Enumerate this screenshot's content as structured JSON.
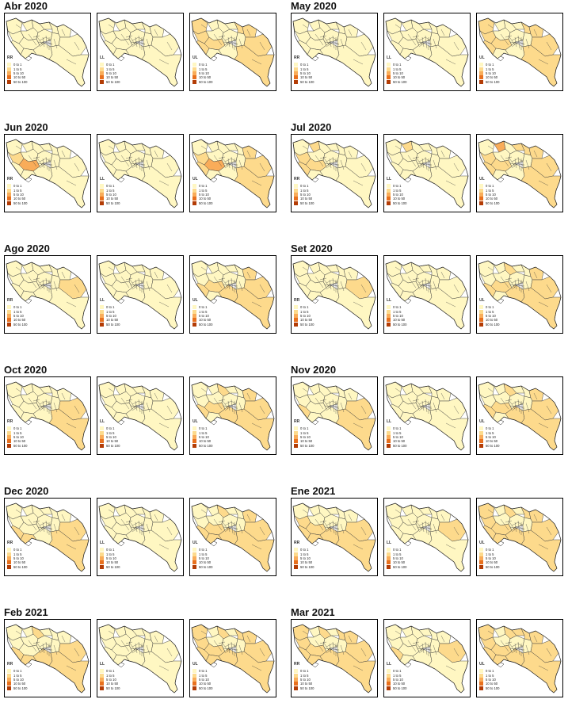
{
  "legend": {
    "items": [
      {
        "label": "0 to 1",
        "color": "#FFF7C2"
      },
      {
        "label": "1 to 5",
        "color": "#FDDA8C"
      },
      {
        "label": "5 to 10",
        "color": "#F9AC59"
      },
      {
        "label": "10 to 50",
        "color": "#E8701E"
      },
      {
        "label": "50 to 100",
        "color": "#B33C05"
      }
    ]
  },
  "panel_labels": [
    "RR",
    "LL",
    "UL"
  ],
  "months": [
    {
      "title": "Abr 2020",
      "levels": [
        [
          0,
          0,
          0,
          0,
          0,
          0,
          0,
          0,
          0,
          0,
          0,
          0,
          0,
          0,
          0,
          0
        ],
        [
          0,
          0,
          0,
          0,
          0,
          0,
          0,
          0,
          0,
          0,
          0,
          0,
          0,
          0,
          0,
          0
        ],
        [
          1,
          0,
          1,
          0,
          0,
          1,
          1,
          1,
          0,
          1,
          0,
          0,
          0,
          0,
          1,
          1
        ]
      ]
    },
    {
      "title": "May 2020",
      "levels": [
        [
          0,
          0,
          0,
          0,
          0,
          0,
          0,
          0,
          0,
          0,
          0,
          0,
          0,
          0,
          0,
          0
        ],
        [
          0,
          0,
          0,
          0,
          0,
          0,
          0,
          0,
          0,
          0,
          0,
          0,
          0,
          0,
          0,
          0
        ],
        [
          1,
          0,
          1,
          0,
          0,
          1,
          1,
          1,
          0,
          1,
          0,
          0,
          0,
          0,
          1,
          1
        ]
      ]
    },
    {
      "title": "Jun 2020",
      "levels": [
        [
          0,
          0,
          1,
          0,
          0,
          0,
          0,
          0,
          0,
          2,
          0,
          0,
          0,
          0,
          0,
          0
        ],
        [
          0,
          0,
          0,
          0,
          0,
          0,
          0,
          0,
          0,
          0,
          0,
          0,
          0,
          0,
          0,
          0
        ],
        [
          0,
          0,
          1,
          0,
          0,
          0,
          1,
          1,
          0,
          2,
          0,
          0,
          0,
          0,
          1,
          1
        ]
      ]
    },
    {
      "title": "Jul 2020",
      "levels": [
        [
          0,
          1,
          1,
          0,
          0,
          0,
          0,
          1,
          0,
          1,
          0,
          0,
          0,
          0,
          0,
          0
        ],
        [
          0,
          1,
          0,
          0,
          0,
          0,
          0,
          0,
          0,
          0,
          0,
          0,
          0,
          0,
          0,
          0
        ],
        [
          0,
          2,
          1,
          0,
          1,
          1,
          1,
          1,
          0,
          1,
          0,
          0,
          0,
          0,
          1,
          1
        ]
      ]
    },
    {
      "title": "Ago 2020",
      "levels": [
        [
          0,
          0,
          0,
          0,
          0,
          0,
          0,
          0,
          0,
          0,
          0,
          0,
          0,
          0,
          1,
          0
        ],
        [
          0,
          0,
          0,
          0,
          0,
          0,
          0,
          0,
          0,
          0,
          0,
          0,
          0,
          0,
          0,
          0
        ],
        [
          0,
          0,
          0,
          0,
          0,
          0,
          1,
          1,
          0,
          1,
          0,
          0,
          0,
          1,
          1,
          1
        ]
      ]
    },
    {
      "title": "Set 2020",
      "levels": [
        [
          0,
          0,
          0,
          0,
          0,
          0,
          0,
          0,
          0,
          0,
          0,
          0,
          0,
          0,
          1,
          0
        ],
        [
          0,
          0,
          0,
          0,
          0,
          0,
          0,
          0,
          0,
          0,
          0,
          0,
          0,
          0,
          0,
          0
        ],
        [
          0,
          0,
          0,
          1,
          0,
          0,
          1,
          1,
          0,
          1,
          0,
          0,
          0,
          1,
          1,
          1
        ]
      ]
    },
    {
      "title": "Oct 2020",
      "levels": [
        [
          0,
          0,
          0,
          0,
          0,
          0,
          0,
          0,
          0,
          0,
          0,
          0,
          0,
          0,
          1,
          1
        ],
        [
          0,
          0,
          0,
          0,
          0,
          0,
          0,
          0,
          0,
          0,
          0,
          0,
          0,
          0,
          0,
          0
        ],
        [
          0,
          0,
          0,
          1,
          0,
          0,
          1,
          1,
          0,
          1,
          0,
          0,
          0,
          1,
          1,
          1
        ]
      ]
    },
    {
      "title": "Nov 2020",
      "levels": [
        [
          0,
          0,
          0,
          0,
          0,
          0,
          0,
          1,
          0,
          0,
          0,
          0,
          0,
          0,
          1,
          1
        ],
        [
          0,
          0,
          0,
          0,
          0,
          0,
          0,
          0,
          0,
          0,
          0,
          0,
          0,
          0,
          0,
          0
        ],
        [
          0,
          0,
          0,
          1,
          0,
          0,
          1,
          1,
          0,
          1,
          0,
          0,
          0,
          1,
          1,
          1
        ]
      ]
    },
    {
      "title": "Dec 2020",
      "levels": [
        [
          0,
          0,
          0,
          0,
          0,
          0,
          0,
          1,
          0,
          0,
          0,
          0,
          1,
          0,
          1,
          1
        ],
        [
          0,
          0,
          0,
          0,
          0,
          0,
          0,
          0,
          0,
          0,
          0,
          0,
          0,
          0,
          0,
          0
        ],
        [
          0,
          0,
          0,
          1,
          0,
          0,
          1,
          1,
          0,
          1,
          0,
          0,
          1,
          1,
          1,
          1
        ]
      ]
    },
    {
      "title": "Ene 2021",
      "levels": [
        [
          0,
          0,
          1,
          0,
          0,
          0,
          0,
          1,
          0,
          1,
          0,
          0,
          1,
          1,
          1,
          1
        ],
        [
          0,
          0,
          0,
          0,
          0,
          0,
          0,
          0,
          0,
          0,
          0,
          0,
          0,
          0,
          1,
          0
        ],
        [
          1,
          0,
          1,
          1,
          0,
          1,
          1,
          1,
          0,
          1,
          0,
          0,
          1,
          1,
          1,
          1
        ]
      ]
    },
    {
      "title": "Feb 2021",
      "levels": [
        [
          0,
          0,
          0,
          1,
          0,
          0,
          0,
          1,
          0,
          0,
          0,
          0,
          1,
          1,
          1,
          1
        ],
        [
          0,
          0,
          0,
          0,
          0,
          0,
          0,
          0,
          0,
          0,
          0,
          0,
          0,
          0,
          0,
          0
        ],
        [
          1,
          0,
          1,
          1,
          0,
          1,
          1,
          1,
          0,
          1,
          0,
          0,
          1,
          1,
          1,
          1
        ]
      ]
    },
    {
      "title": "Mar 2021",
      "levels": [
        [
          1,
          0,
          1,
          1,
          0,
          1,
          1,
          1,
          0,
          1,
          0,
          0,
          1,
          1,
          1,
          1
        ],
        [
          0,
          0,
          0,
          0,
          0,
          0,
          0,
          1,
          0,
          0,
          0,
          0,
          0,
          0,
          1,
          0
        ],
        [
          1,
          0,
          1,
          1,
          1,
          1,
          1,
          1,
          0,
          1,
          0,
          0,
          1,
          1,
          1,
          1
        ]
      ]
    }
  ],
  "colors": {
    "border": "#3a3a3a",
    "water": "#ffffff",
    "text": "#111111"
  }
}
